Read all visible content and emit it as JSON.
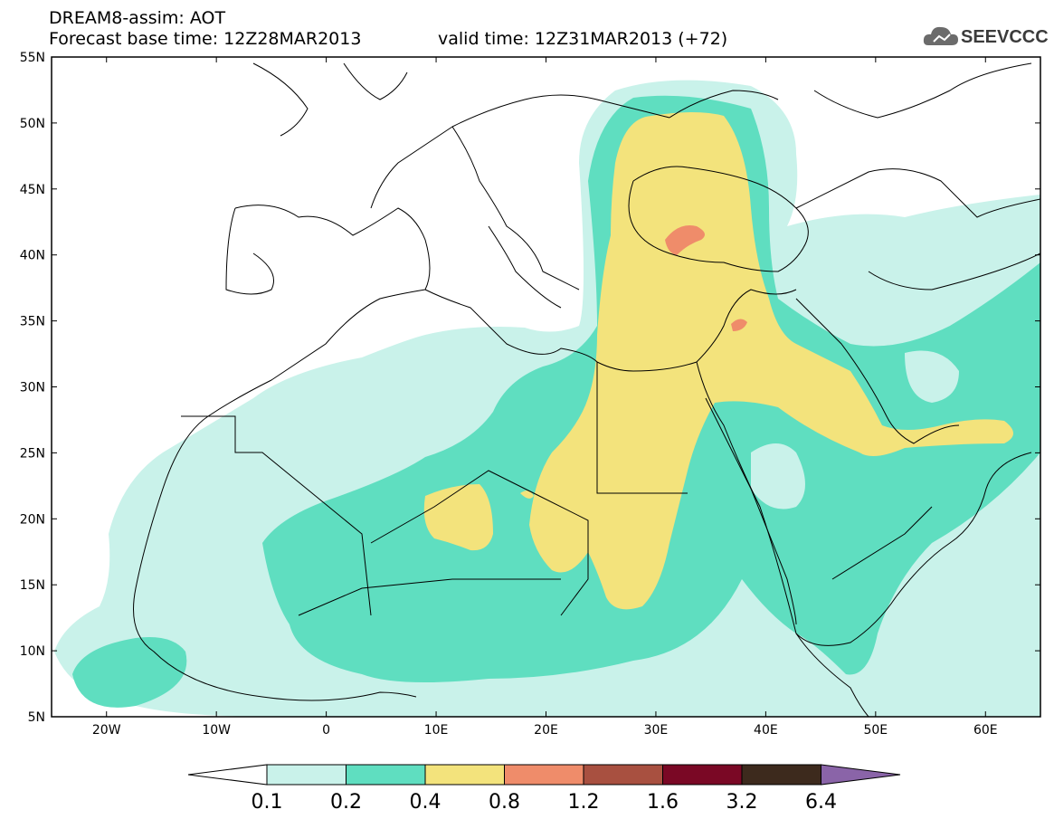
{
  "header": {
    "line1": "DREAM8-assim: AOT",
    "line2": "Forecast base time: 12Z28MAR2013",
    "valid": "valid time: 12Z31MAR2013 (+72)"
  },
  "logo": {
    "text": "SEEVCCC",
    "icon": "cloud-icon"
  },
  "map": {
    "lat_labels": [
      "55N",
      "50N",
      "45N",
      "40N",
      "35N",
      "30N",
      "25N",
      "20N",
      "15N",
      "10N",
      "5N"
    ],
    "lon_labels": [
      "20W",
      "10W",
      "0",
      "10E",
      "20E",
      "30E",
      "40E",
      "50E",
      "60E"
    ],
    "lon_range": [
      -25,
      65
    ],
    "lat_range": [
      5,
      55
    ],
    "projection": "lat-lon",
    "field_colors": {
      "0.1-0.2": "#c9f2ea",
      "0.2-0.4": "#5fdec0",
      "0.4-0.8": "#f3e37c",
      "0.8-1.2": "#ef8c6a"
    }
  },
  "colorbar": {
    "levels": [
      "0.1",
      "0.2",
      "0.4",
      "0.8",
      "1.2",
      "1.6",
      "3.2",
      "6.4"
    ],
    "colors": [
      "#c9f2ea",
      "#5fdec0",
      "#f3e37c",
      "#ef8c6a",
      "#a85040",
      "#7a0825",
      "#3d2a1d",
      "#8a64a8"
    ]
  }
}
